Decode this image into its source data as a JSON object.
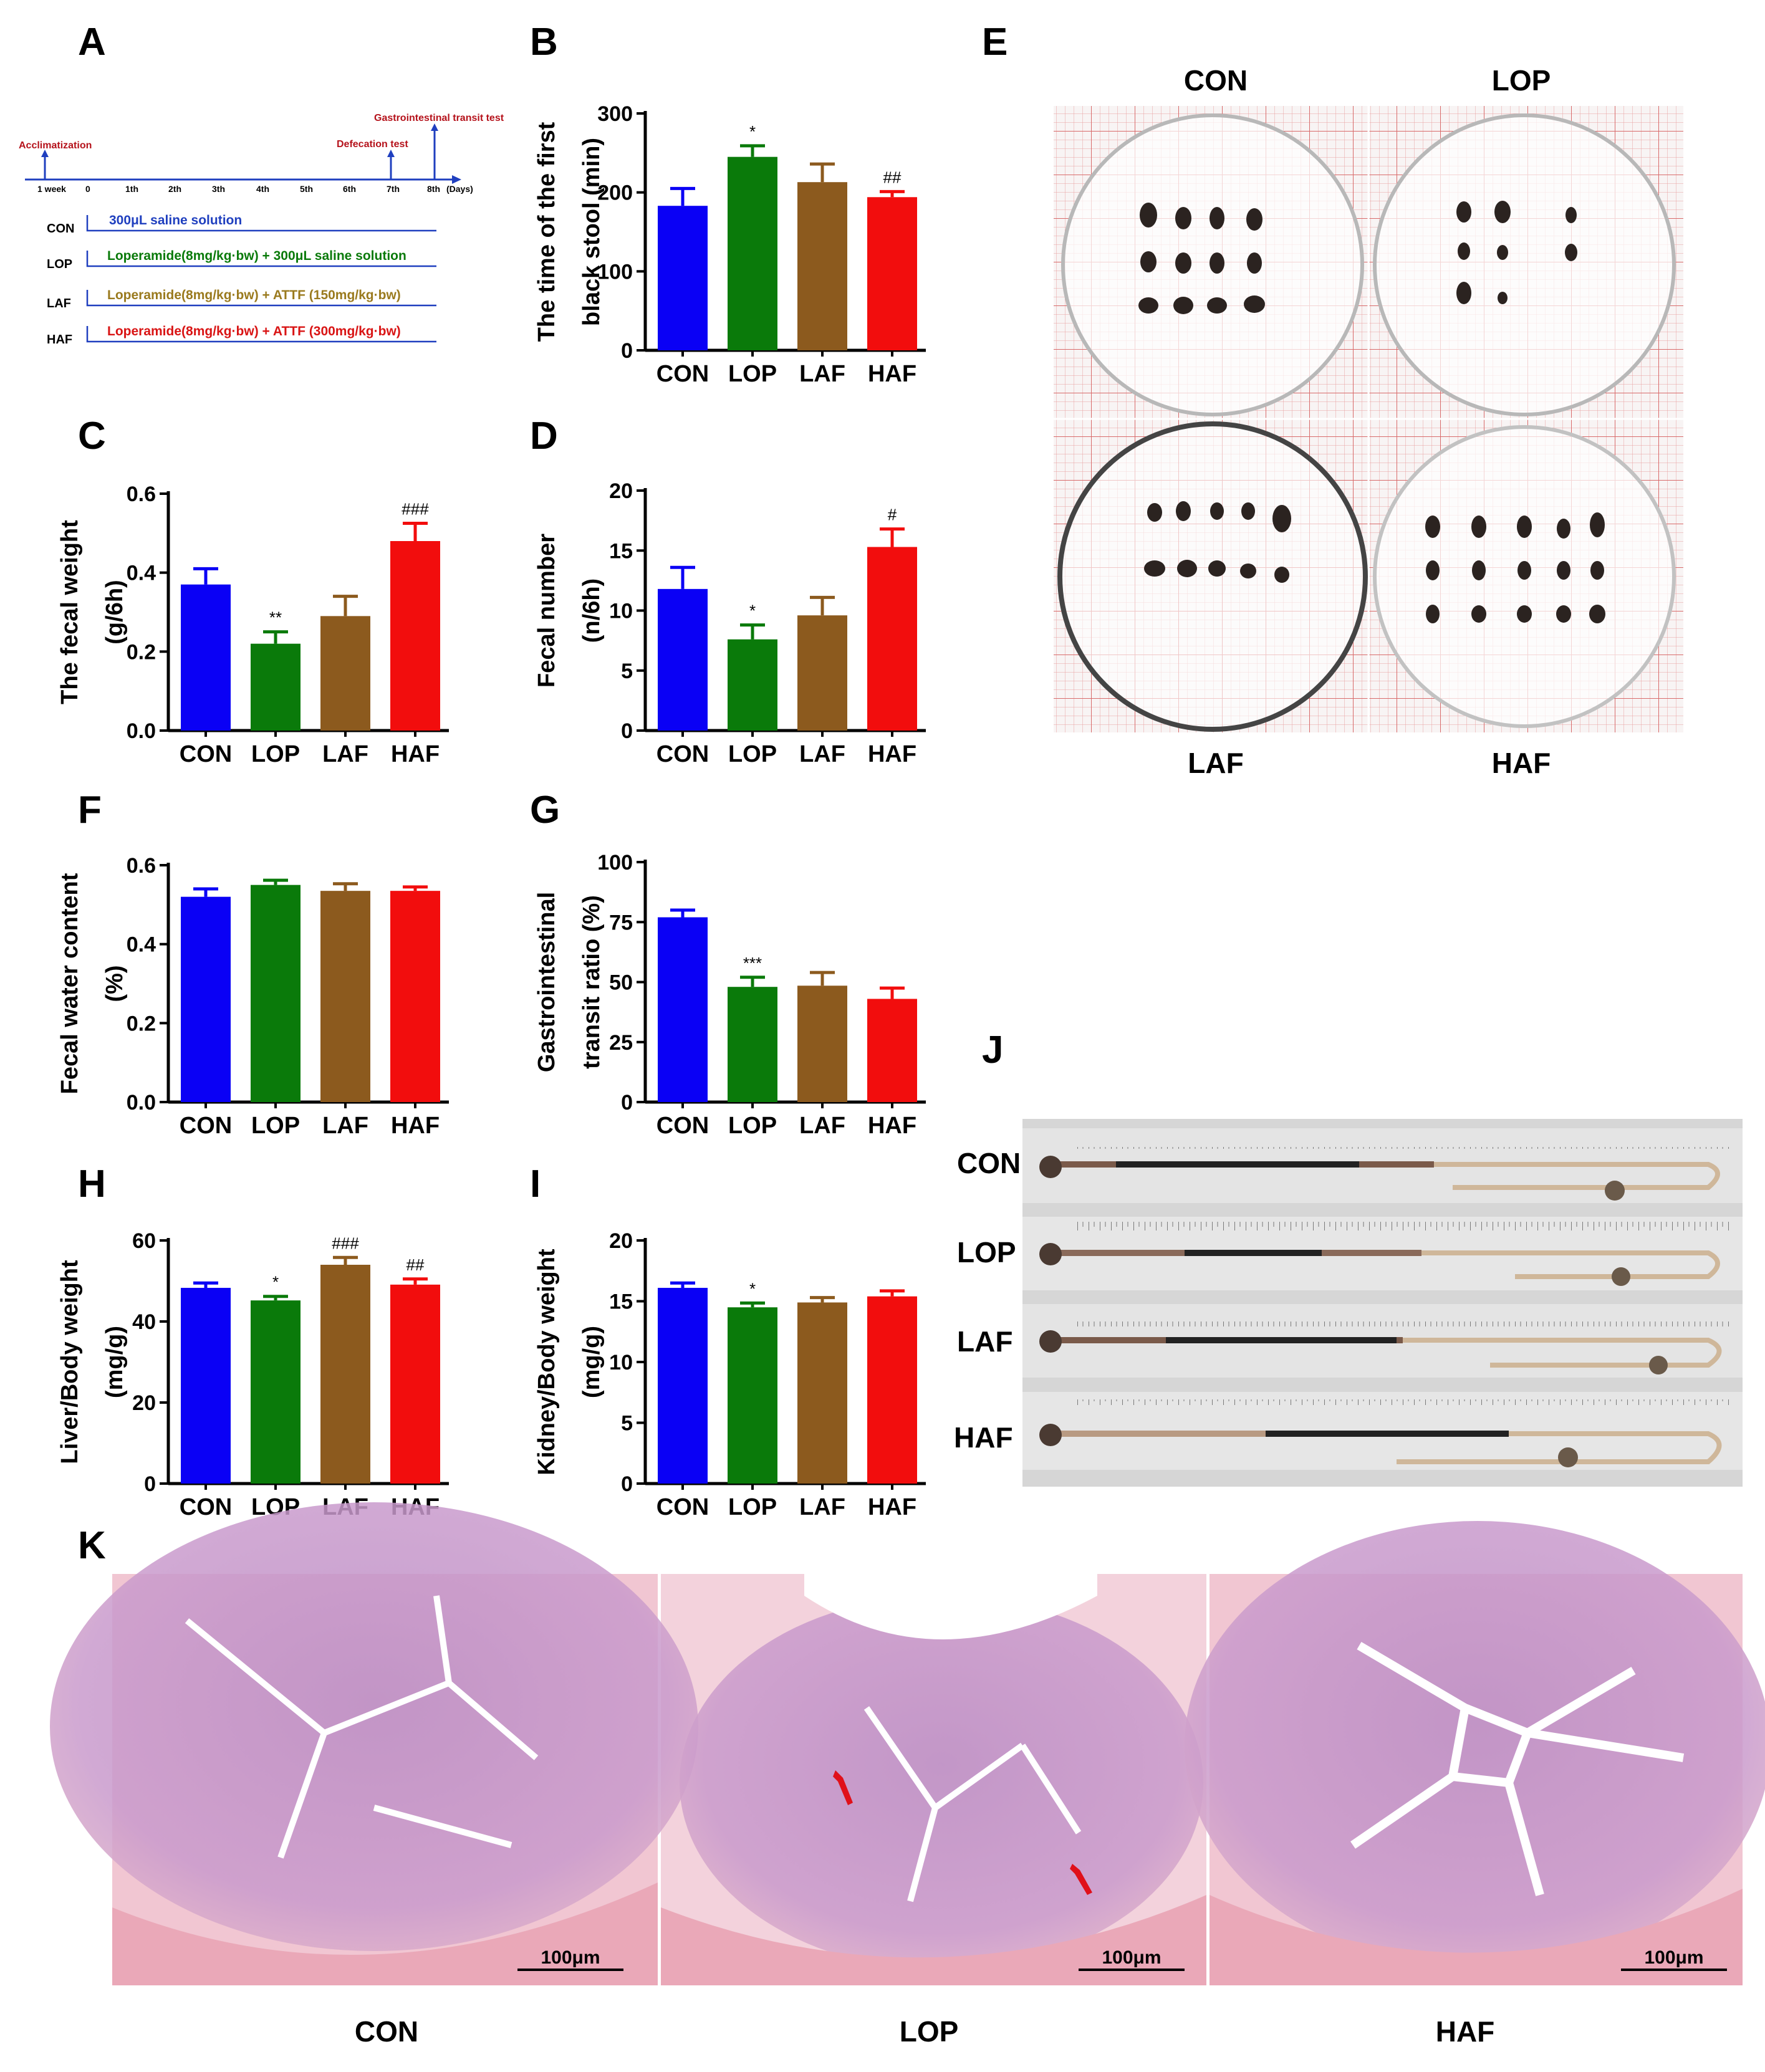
{
  "colors": {
    "CON": "#0a00f5",
    "LOP": "#0a7a0a",
    "LAF": "#8c5a1e",
    "HAF": "#f20d0d"
  },
  "panel_letters": [
    "A",
    "B",
    "C",
    "D",
    "E",
    "F",
    "G",
    "H",
    "I",
    "J",
    "K"
  ],
  "timeline": {
    "events": {
      "acclimatization": "Acclimatization",
      "defecation": "Defecation test",
      "gi_transit": "Gastrointestinal transit test"
    },
    "ticks": [
      "1 week",
      "0",
      "1th",
      "2th",
      "3th",
      "4th",
      "5th",
      "6th",
      "7th",
      "8th"
    ],
    "days_label": "(Days)",
    "groups": [
      {
        "name": "CON",
        "treatment": "300μL  saline solution",
        "color": "#1f3fbf"
      },
      {
        "name": "LOP",
        "treatment": "Loperamide(8mg/kg·bw) + 300μL  saline solution",
        "color": "#0a7a0a"
      },
      {
        "name": "LAF",
        "treatment": "Loperamide(8mg/kg·bw) + ATTF (150mg/kg·bw)",
        "color": "#9a7a1e"
      },
      {
        "name": "HAF",
        "treatment": "Loperamide(8mg/kg·bw) + ATTF (300mg/kg·bw)",
        "color": "#d91414"
      }
    ]
  },
  "chart_data": [
    {
      "panel": "B",
      "type": "bar",
      "categories": [
        "CON",
        "LOP",
        "LAF",
        "HAF"
      ],
      "ylabel_lines": [
        "The time of the first",
        "black stool (min)"
      ],
      "ylim": [
        0,
        300
      ],
      "yticks": [
        0,
        100,
        200,
        300
      ],
      "ytick_labels": [
        "0",
        "100",
        "200",
        "300"
      ],
      "values": [
        183,
        245,
        213,
        194
      ],
      "errors": [
        22,
        14,
        23,
        7
      ],
      "annotations": [
        "",
        "*",
        "",
        "##"
      ]
    },
    {
      "panel": "C",
      "type": "bar",
      "categories": [
        "CON",
        "LOP",
        "LAF",
        "HAF"
      ],
      "ylabel_lines": [
        "The fecal weight",
        "(g/6h)"
      ],
      "ylim": [
        0,
        0.6
      ],
      "yticks": [
        0,
        0.2,
        0.4,
        0.6
      ],
      "ytick_labels": [
        "0.0",
        "0.2",
        "0.4",
        "0.6"
      ],
      "values": [
        0.37,
        0.22,
        0.29,
        0.48
      ],
      "errors": [
        0.04,
        0.03,
        0.05,
        0.045
      ],
      "annotations": [
        "",
        "**",
        "",
        "###"
      ]
    },
    {
      "panel": "D",
      "type": "bar",
      "categories": [
        "CON",
        "LOP",
        "LAF",
        "HAF"
      ],
      "ylabel_lines": [
        "Fecal number",
        "(n/6h)"
      ],
      "ylim": [
        0,
        20
      ],
      "yticks": [
        0,
        5,
        10,
        15,
        20
      ],
      "ytick_labels": [
        "0",
        "5",
        "10",
        "15",
        "20"
      ],
      "values": [
        11.8,
        7.6,
        9.6,
        15.3
      ],
      "errors": [
        1.8,
        1.2,
        1.5,
        1.5
      ],
      "annotations": [
        "",
        "*",
        "",
        "#"
      ]
    },
    {
      "panel": "F",
      "type": "bar",
      "categories": [
        "CON",
        "LOP",
        "LAF",
        "HAF"
      ],
      "ylabel_lines": [
        "Fecal water content",
        "(%)"
      ],
      "ylim": [
        0,
        0.6
      ],
      "yticks": [
        0,
        0.2,
        0.4,
        0.6
      ],
      "ytick_labels": [
        "0.0",
        "0.2",
        "0.4",
        "0.6"
      ],
      "values": [
        0.52,
        0.55,
        0.535,
        0.535
      ],
      "errors": [
        0.02,
        0.012,
        0.018,
        0.01
      ],
      "annotations": [
        "",
        "",
        "",
        ""
      ]
    },
    {
      "panel": "G",
      "type": "bar",
      "categories": [
        "CON",
        "LOP",
        "LAF",
        "HAF"
      ],
      "ylabel_lines": [
        "Gastrointestinal",
        "transit ratio (%)"
      ],
      "ylim": [
        0,
        100
      ],
      "yticks": [
        0,
        25,
        50,
        75,
        100
      ],
      "ytick_labels": [
        "0",
        "25",
        "50",
        "75",
        "100"
      ],
      "values": [
        77,
        48,
        48.5,
        43
      ],
      "errors": [
        3,
        4,
        5.5,
        4.5
      ],
      "annotations": [
        "",
        "***",
        "",
        ""
      ]
    },
    {
      "panel": "H",
      "type": "bar",
      "categories": [
        "CON",
        "LOP",
        "LAF",
        "HAF"
      ],
      "ylabel_lines": [
        "Liver/Body weight",
        "(mg/g)"
      ],
      "ylim": [
        0,
        60
      ],
      "yticks": [
        0,
        20,
        40,
        60
      ],
      "ytick_labels": [
        "0",
        "20",
        "40",
        "60"
      ],
      "values": [
        48.3,
        45.2,
        54.0,
        49.1
      ],
      "errors": [
        1.2,
        1.0,
        1.8,
        1.4
      ],
      "annotations": [
        "",
        "*",
        "###",
        "##"
      ]
    },
    {
      "panel": "I",
      "type": "bar",
      "categories": [
        "CON",
        "LOP",
        "LAF",
        "HAF"
      ],
      "ylabel_lines": [
        "Kidney/Body weight",
        "(mg/g)"
      ],
      "ylim": [
        0,
        20
      ],
      "yticks": [
        0,
        5,
        10,
        15,
        20
      ],
      "ytick_labels": [
        "0",
        "5",
        "10",
        "15",
        "20"
      ],
      "values": [
        16.1,
        14.5,
        14.9,
        15.4
      ],
      "errors": [
        0.4,
        0.35,
        0.4,
        0.45
      ],
      "annotations": [
        "",
        "*",
        "",
        ""
      ]
    }
  ],
  "photos": {
    "E_labels": [
      "CON",
      "LOP",
      "LAF",
      "HAF"
    ],
    "J_labels": [
      "CON",
      "LOP",
      "LAF",
      "HAF"
    ],
    "K_labels": [
      "CON",
      "LOP",
      "HAF"
    ],
    "K_scale": "100μm"
  }
}
